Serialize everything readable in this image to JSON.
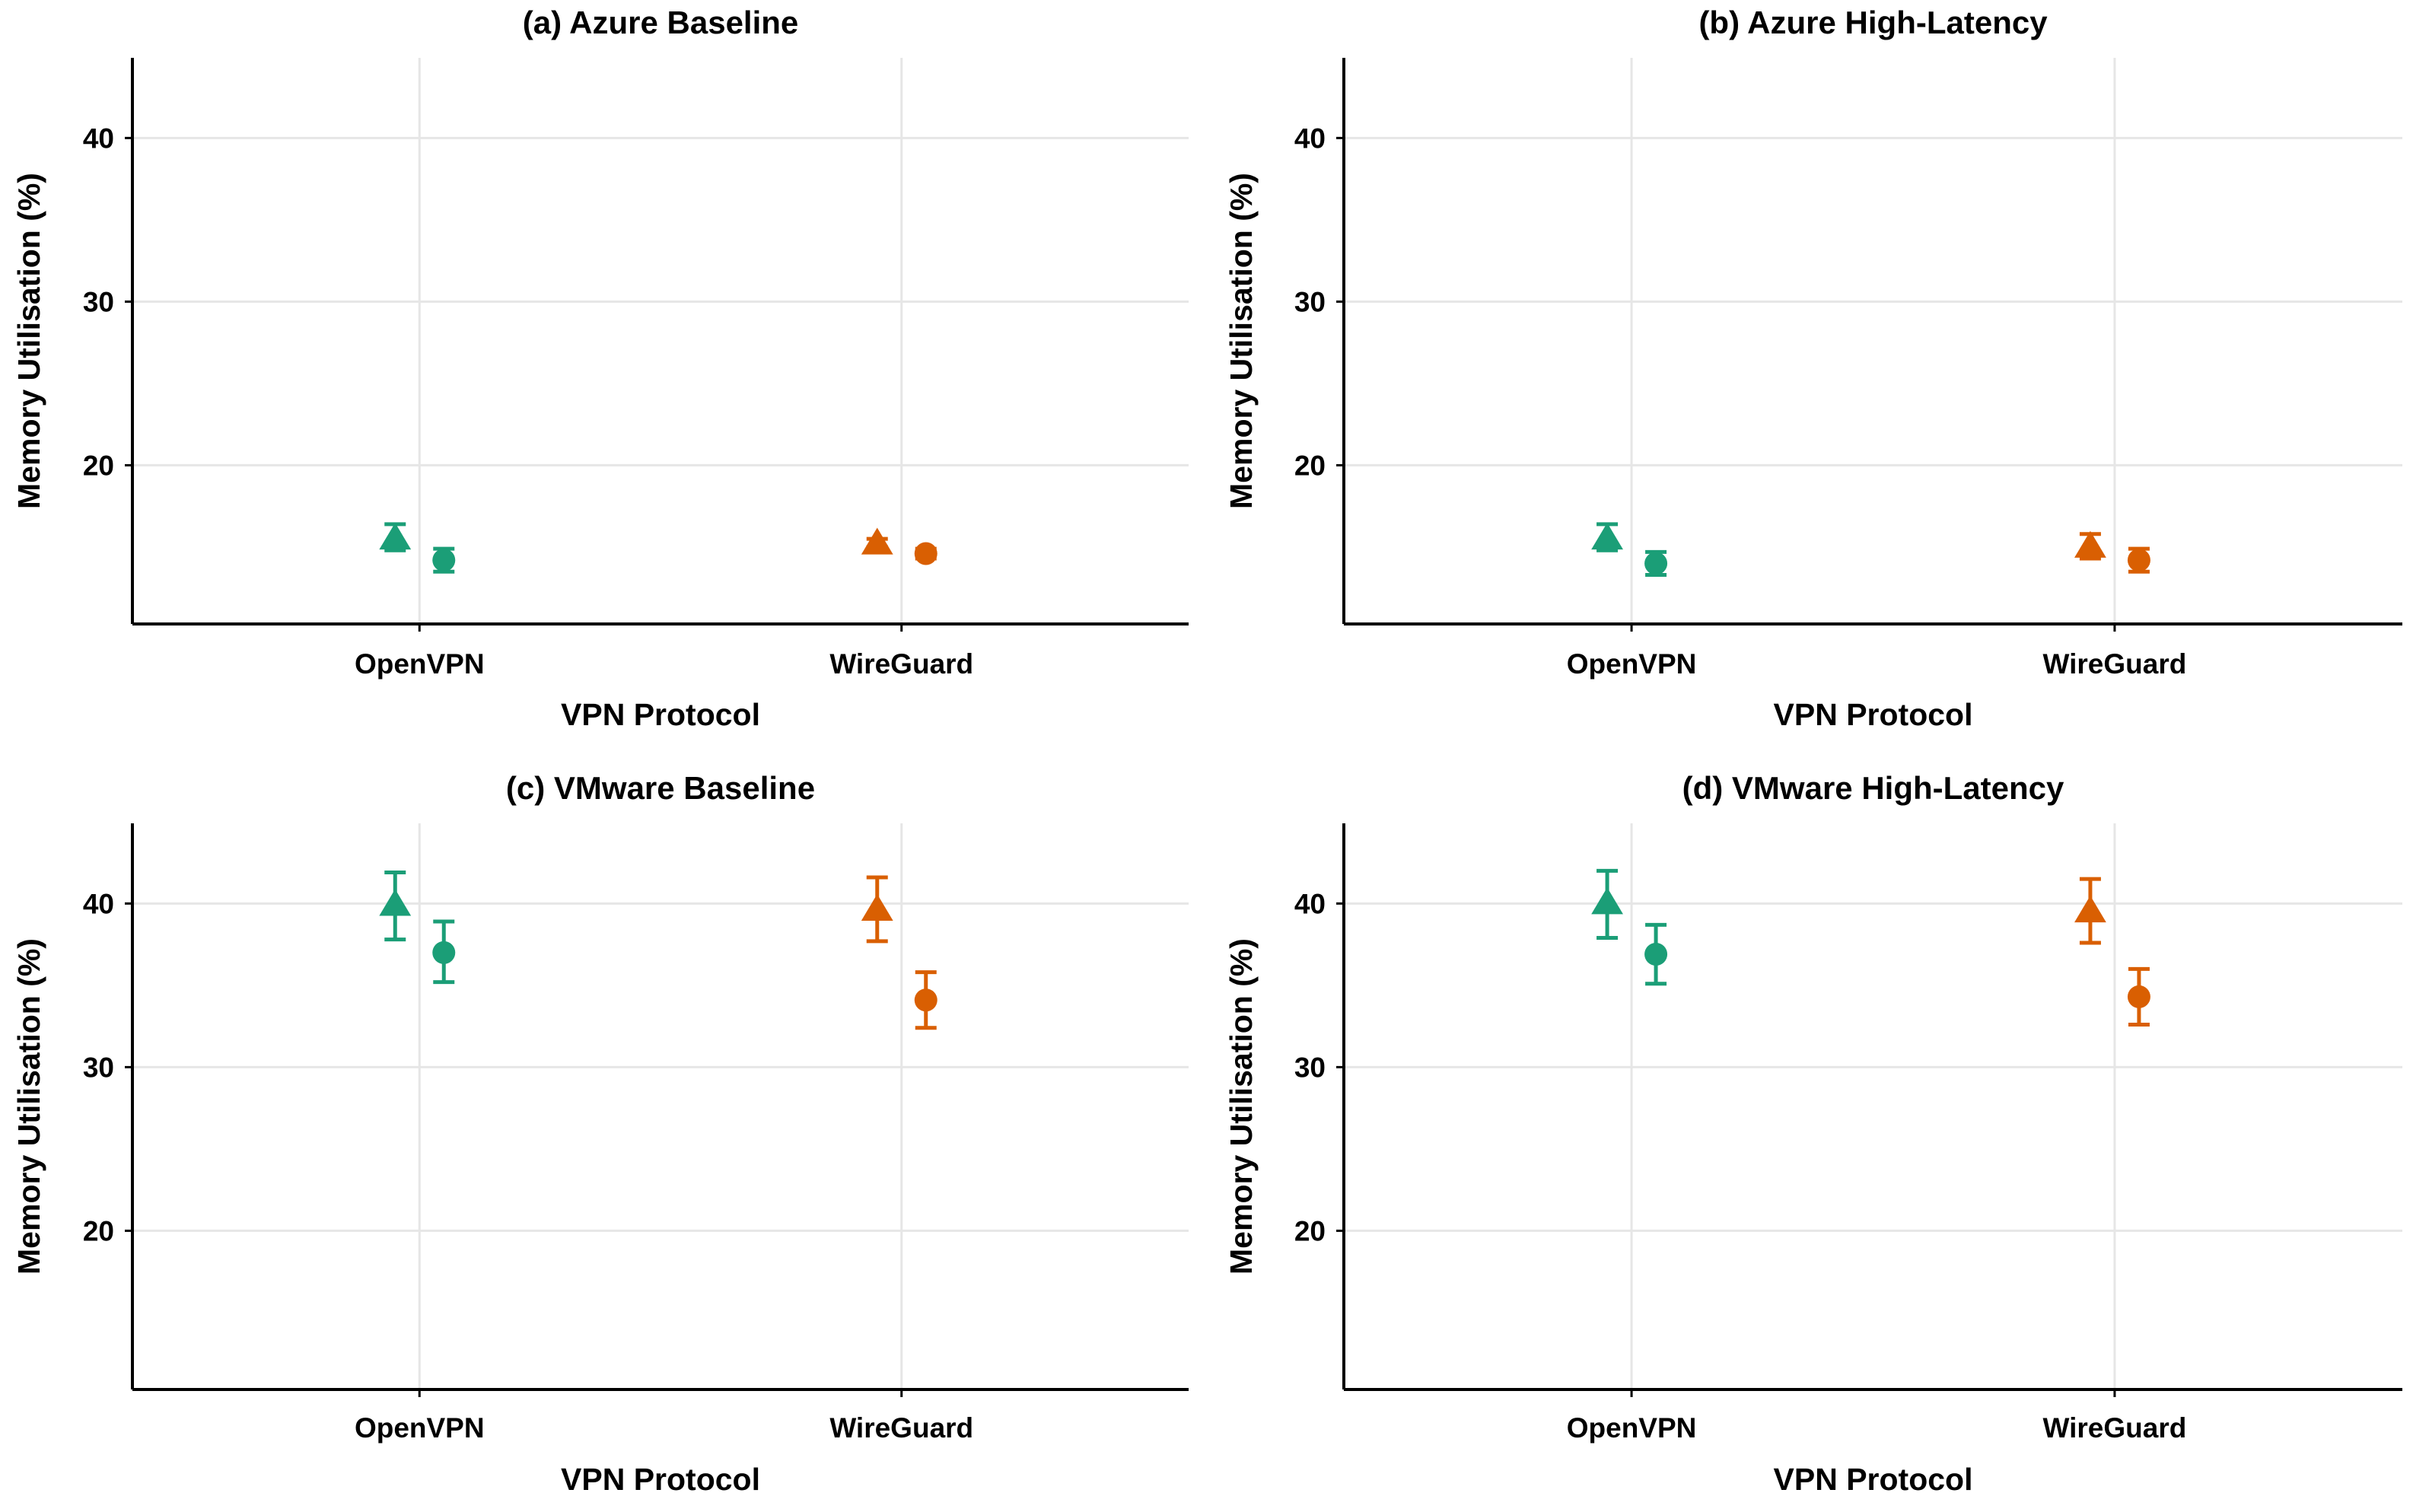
{
  "chart_data": [
    {
      "type": "scatter",
      "panel": "a",
      "title": "(a) Azure Baseline",
      "xlabel": "VPN Protocol",
      "ylabel": "Memory Utilisation (%)",
      "categories": [
        "OpenVPN",
        "WireGuard"
      ],
      "ylim": [
        10.3,
        44.9
      ],
      "yticks": [
        20,
        30,
        40
      ],
      "yticklabels": [
        "20",
        "30",
        "40"
      ],
      "colors": {
        "OpenVPN": "#1b9e77",
        "WireGuard": "#d95f02"
      },
      "points": [
        {
          "category": "OpenVPN",
          "marker": "triangle",
          "value": 15.6,
          "low": 14.8,
          "high": 16.4
        },
        {
          "category": "OpenVPN",
          "marker": "circle",
          "value": 14.2,
          "low": 13.5,
          "high": 14.9
        },
        {
          "category": "WireGuard",
          "marker": "triangle",
          "value": 15.3,
          "low": 15.0,
          "high": 15.5
        },
        {
          "category": "WireGuard",
          "marker": "circle",
          "value": 14.6,
          "low": 14.3,
          "high": 14.9
        }
      ]
    },
    {
      "type": "scatter",
      "panel": "b",
      "title": "(b) Azure High-Latency",
      "xlabel": "VPN Protocol",
      "ylabel": "Memory Utilisation (%)",
      "categories": [
        "OpenVPN",
        "WireGuard"
      ],
      "ylim": [
        10.3,
        44.9
      ],
      "yticks": [
        20,
        30,
        40
      ],
      "yticklabels": [
        "20",
        "30",
        "40"
      ],
      "colors": {
        "OpenVPN": "#1b9e77",
        "WireGuard": "#d95f02"
      },
      "points": [
        {
          "category": "OpenVPN",
          "marker": "triangle",
          "value": 15.6,
          "low": 14.8,
          "high": 16.4
        },
        {
          "category": "OpenVPN",
          "marker": "circle",
          "value": 14.0,
          "low": 13.3,
          "high": 14.7
        },
        {
          "category": "WireGuard",
          "marker": "triangle",
          "value": 15.1,
          "low": 14.3,
          "high": 15.8
        },
        {
          "category": "WireGuard",
          "marker": "circle",
          "value": 14.2,
          "low": 13.5,
          "high": 14.9
        }
      ]
    },
    {
      "type": "scatter",
      "panel": "c",
      "title": "(c) VMware Baseline",
      "xlabel": "VPN Protocol",
      "ylabel": "Memory Utilisation (%)",
      "categories": [
        "OpenVPN",
        "WireGuard"
      ],
      "ylim": [
        10.3,
        44.9
      ],
      "yticks": [
        20,
        30,
        40
      ],
      "yticklabels": [
        "20",
        "30",
        "40"
      ],
      "colors": {
        "OpenVPN": "#1b9e77",
        "WireGuard": "#d95f02"
      },
      "points": [
        {
          "category": "OpenVPN",
          "marker": "triangle",
          "value": 40.0,
          "low": 37.8,
          "high": 41.9
        },
        {
          "category": "OpenVPN",
          "marker": "circle",
          "value": 37.0,
          "low": 35.2,
          "high": 38.9
        },
        {
          "category": "WireGuard",
          "marker": "triangle",
          "value": 39.7,
          "low": 37.7,
          "high": 41.6
        },
        {
          "category": "WireGuard",
          "marker": "circle",
          "value": 34.1,
          "low": 32.4,
          "high": 35.8
        }
      ]
    },
    {
      "type": "scatter",
      "panel": "d",
      "title": "(d) VMware High-Latency",
      "xlabel": "VPN Protocol",
      "ylabel": "Memory Utilisation (%)",
      "categories": [
        "OpenVPN",
        "WireGuard"
      ],
      "ylim": [
        10.3,
        44.9
      ],
      "yticks": [
        20,
        30,
        40
      ],
      "yticklabels": [
        "20",
        "30",
        "40"
      ],
      "colors": {
        "OpenVPN": "#1b9e77",
        "WireGuard": "#d95f02"
      },
      "points": [
        {
          "category": "OpenVPN",
          "marker": "triangle",
          "value": 40.1,
          "low": 37.9,
          "high": 42.0
        },
        {
          "category": "OpenVPN",
          "marker": "circle",
          "value": 36.9,
          "low": 35.1,
          "high": 38.7
        },
        {
          "category": "WireGuard",
          "marker": "triangle",
          "value": 39.6,
          "low": 37.6,
          "high": 41.5
        },
        {
          "category": "WireGuard",
          "marker": "circle",
          "value": 34.3,
          "low": 32.6,
          "high": 36.0
        }
      ]
    }
  ]
}
